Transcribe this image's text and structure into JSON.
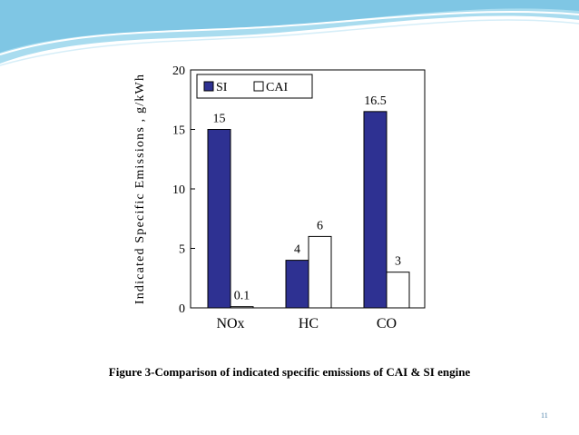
{
  "slide": {
    "caption": "Figure 3-Comparison of indicated specific emissions of CAI & SI engine",
    "slide_number": "11",
    "accent_color": "#7fc6e4"
  },
  "chart_data": {
    "type": "bar",
    "categories": [
      "NOx",
      "HC",
      "CO"
    ],
    "series": [
      {
        "name": "SI",
        "values": [
          15,
          4,
          16.5
        ],
        "labels": [
          "15",
          "4",
          "16.5"
        ],
        "color": "#2e3192"
      },
      {
        "name": "CAI",
        "values": [
          0.1,
          6,
          3
        ],
        "labels": [
          "0.1",
          "6",
          "3"
        ],
        "color": "#ffffff"
      }
    ],
    "ylabel": "Indicated Specific Emissions , g/kWh",
    "ylim": [
      0,
      20
    ],
    "yticks": [
      "0",
      "5",
      "10",
      "15",
      "20"
    ],
    "legend": "top-left",
    "grid": false
  }
}
